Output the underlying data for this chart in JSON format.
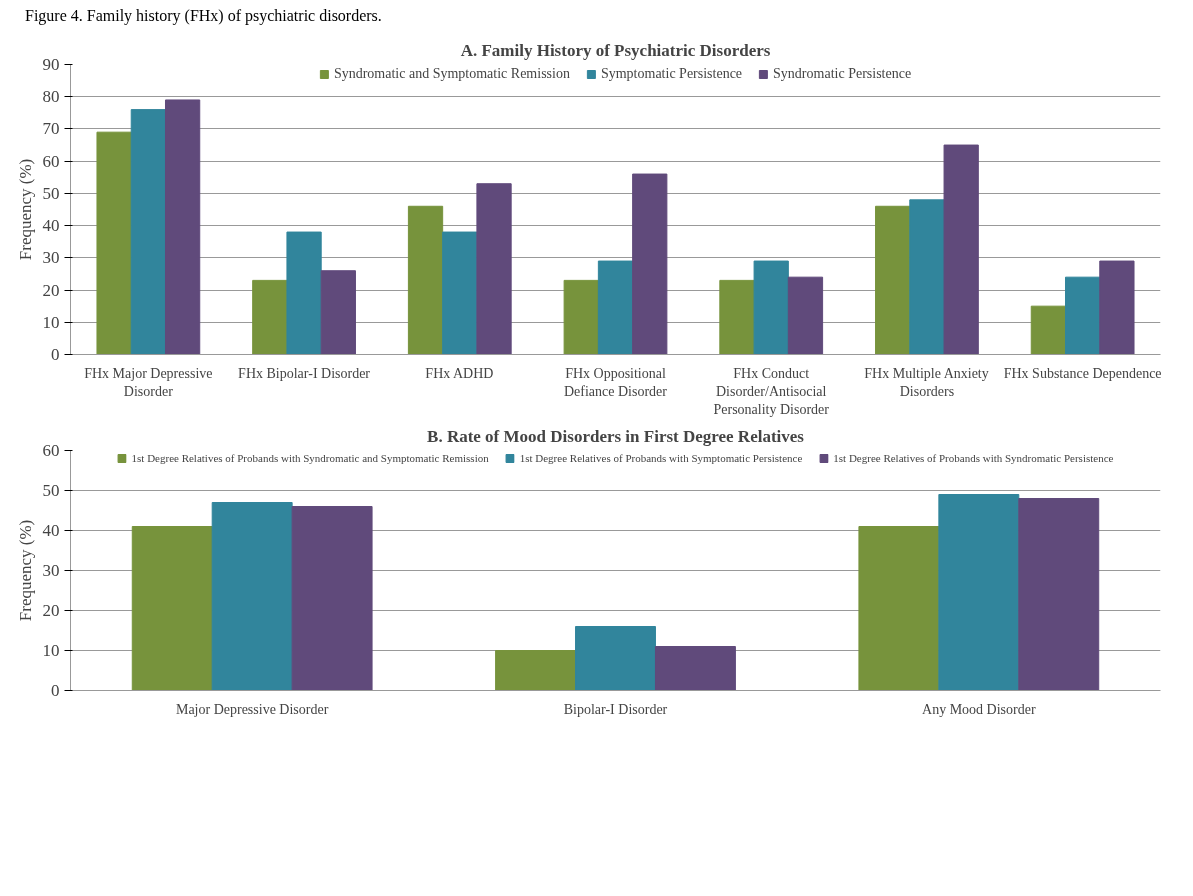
{
  "chart_data": [
    {
      "type": "bar",
      "title": "A. Family History of Psychiatric Disorders",
      "ylabel": "Frequency (%)",
      "annotations": [
        "Figure 4. Family history (FHx) of psychiatric disorders."
      ],
      "categories": [
        "FHx Major Depressive Disorder",
        "FHx Bipolar-I Disorder",
        "FHx ADHD",
        "FHx Oppositional Defiance Disorder",
        "FHx Conduct Disorder/Antisocial Personality Disorder",
        "FHx Multiple Anxiety Disorders",
        "FHx Substance Dependence"
      ],
      "series": [
        {
          "name": "Syndromatic and Symptomatic Remission",
          "color": "#77933c",
          "values": [
            69,
            23,
            46,
            23,
            23,
            46,
            15
          ]
        },
        {
          "name": "Symptomatic Persistence",
          "color": "#31859c",
          "values": [
            76,
            38,
            38,
            29,
            29,
            48,
            24
          ]
        },
        {
          "name": "Syndromatic Persistence",
          "color": "#604a7b",
          "values": [
            79,
            26,
            53,
            56,
            24,
            65,
            29
          ]
        }
      ],
      "ylim": [
        0,
        90
      ],
      "yticks": [
        0,
        10,
        20,
        30,
        40,
        50,
        60,
        70,
        80,
        90
      ],
      "grid": "y",
      "legend": "top"
    },
    {
      "type": "bar",
      "title": "B. Rate of Mood Disorders in First Degree Relatives",
      "ylabel": "Frequency (%)",
      "categories": [
        "Major Depressive Disorder",
        "Bipolar-I Disorder",
        "Any Mood Disorder"
      ],
      "series": [
        {
          "name": "1st Degree Relatives of Probands with Syndromatic and Symptomatic Remission",
          "color": "#77933c",
          "values": [
            41,
            10,
            41
          ]
        },
        {
          "name": "1st Degree Relatives of Probands with Symptomatic Persistence",
          "color": "#31859c",
          "values": [
            47,
            16,
            49
          ]
        },
        {
          "name": "1st Degree Relatives of Probands with Syndromatic Persistence",
          "color": "#604a7b",
          "values": [
            46,
            11,
            48
          ]
        }
      ],
      "ylim": [
        0,
        60
      ],
      "yticks": [
        0,
        10,
        20,
        30,
        40,
        50,
        60
      ],
      "grid": "y",
      "legend": "top"
    }
  ]
}
